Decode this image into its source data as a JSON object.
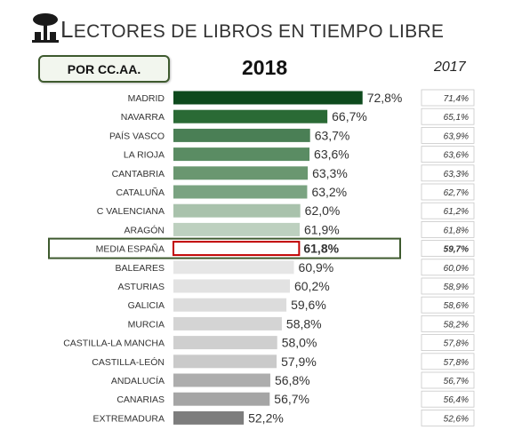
{
  "header": {
    "title": "LECTORES DE LIBROS EN TIEMPO LIBRE",
    "region_button_label": "POR CC.AA.",
    "year_current": "2018",
    "year_previous": "2017"
  },
  "colors": {
    "accent_dark_green": "#0e4a1d",
    "highlight_border": "#c00000",
    "highlight_frame": "#3e5a2e"
  },
  "chart_data": {
    "type": "bar",
    "orientation": "horizontal",
    "categories": [
      "MADRID",
      "NAVARRA",
      "PAÍS VASCO",
      "LA RIOJA",
      "CANTABRIA",
      "CATALUÑA",
      "C VALENCIANA",
      "ARAGÓN",
      "MEDIA ESPAÑA",
      "BALEARES",
      "ASTURIAS",
      "GALICIA",
      "MURCIA",
      "CASTILLA-LA MANCHA",
      "CASTILLA-LEÓN",
      "ANDALUCÍA",
      "CANARIAS",
      "EXTREMADURA"
    ],
    "series": [
      {
        "name": "2018",
        "values": [
          72.8,
          66.7,
          63.7,
          63.6,
          63.3,
          63.2,
          62.0,
          61.9,
          61.8,
          60.9,
          60.2,
          59.6,
          58.8,
          58.0,
          57.9,
          56.8,
          56.7,
          52.2
        ],
        "labels": [
          "72,8%",
          "66,7%",
          "63,7%",
          "63,6%",
          "63,3%",
          "63,2%",
          "62,0%",
          "61,9%",
          "61,8%",
          "60,9%",
          "60,2%",
          "59,6%",
          "58,8%",
          "58,0%",
          "57,9%",
          "56,8%",
          "56,7%",
          "52,2%"
        ]
      },
      {
        "name": "2017",
        "values": [
          71.4,
          65.1,
          63.9,
          63.6,
          63.3,
          62.7,
          61.2,
          61.8,
          59.7,
          60.0,
          58.9,
          58.6,
          58.2,
          57.8,
          57.8,
          56.7,
          56.4,
          52.6
        ],
        "labels": [
          "71,4%",
          "65,1%",
          "63,9%",
          "63,6%",
          "63,3%",
          "62,7%",
          "61,2%",
          "61,8%",
          "59,7%",
          "60,0%",
          "58,9%",
          "58,6%",
          "58,2%",
          "57,8%",
          "57,8%",
          "56,7%",
          "56,4%",
          "52,6%"
        ]
      }
    ],
    "bar_colors": [
      "#0e4a1d",
      "#2a6a35",
      "#4a7f55",
      "#5a8c63",
      "#6a9770",
      "#7aa381",
      "#a9c2ac",
      "#bdd0bf",
      "#ffffff",
      "#e6e6e6",
      "#e2e2e2",
      "#dcdcdc",
      "#d4d4d4",
      "#cfcfcf",
      "#cacaca",
      "#adadad",
      "#a5a5a5",
      "#7d7d7d"
    ],
    "highlight_category": "MEDIA ESPAÑA",
    "xlim": [
      40,
      73
    ]
  }
}
